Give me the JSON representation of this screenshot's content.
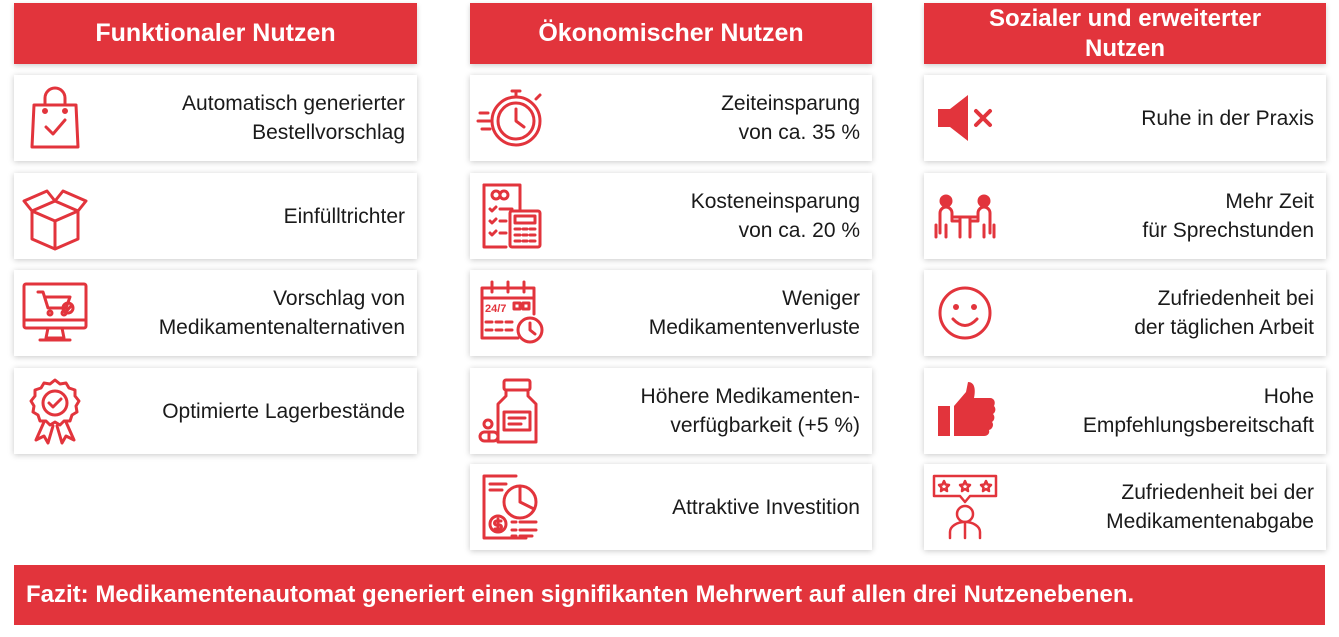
{
  "columns": [
    {
      "header": "Funktionaler Nutzen",
      "cards": [
        {
          "icon": "shopping-bag-check-icon",
          "lines": [
            "Automatisch generierter",
            "Bestellvorschlag"
          ]
        },
        {
          "icon": "open-box-icon",
          "lines": [
            "Einfülltrichter"
          ]
        },
        {
          "icon": "monitor-cart-icon",
          "lines": [
            "Vorschlag von",
            "Medikamentenalternativen"
          ]
        },
        {
          "icon": "quality-badge-check-icon",
          "lines": [
            "Optimierte Lagerbestände"
          ]
        }
      ]
    },
    {
      "header": "Ökonomischer Nutzen",
      "cards": [
        {
          "icon": "stopwatch-icon",
          "lines": [
            "Zeiteinsparung",
            "von ca. 35 %"
          ]
        },
        {
          "icon": "invoice-calculator-icon",
          "lines": [
            "Kosteneinsparung",
            "von ca. 20 %"
          ]
        },
        {
          "icon": "calendar-24-7-icon",
          "lines": [
            "Weniger",
            "Medikamentenverluste"
          ]
        },
        {
          "icon": "pill-bottle-icon",
          "lines": [
            "Höhere Medikamenten-",
            "verfügbarkeit (+5 %)"
          ]
        },
        {
          "icon": "report-pie-chart-icon",
          "lines": [
            "Attraktive Investition"
          ]
        }
      ]
    },
    {
      "header": "Sozialer und erweiterter Nutzen",
      "cards": [
        {
          "icon": "speaker-mute-icon",
          "lines": [
            "Ruhe in der Praxis"
          ]
        },
        {
          "icon": "consultation-meeting-icon",
          "lines": [
            "Mehr Zeit",
            "für Sprechstunden"
          ]
        },
        {
          "icon": "smiley-face-icon",
          "lines": [
            "Zufriedenheit bei",
            "der täglichen Arbeit"
          ]
        },
        {
          "icon": "thumbs-up-icon",
          "lines": [
            "Hohe",
            "Empfehlungsbereitschaft"
          ]
        },
        {
          "icon": "star-rating-person-icon",
          "lines": [
            "Zufriedenheit bei der",
            "Medikamentenabgabe"
          ]
        }
      ]
    }
  ],
  "conclusion": "Fazit: Medikamentenautomat generiert einen signifikanten Mehrwert auf allen drei Nutzenebenen.",
  "colors": {
    "accent": "#e2343c",
    "text": "#1a1a1a",
    "background": "#ffffff"
  }
}
